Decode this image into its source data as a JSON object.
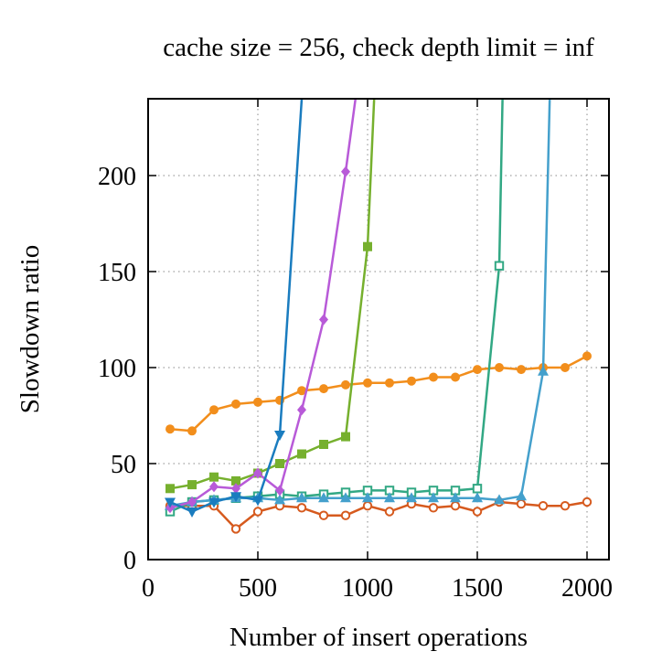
{
  "chart_data": {
    "type": "line",
    "title": "cache size = 256, check depth limit = inf",
    "xlabel": "Number of insert operations",
    "ylabel": "Slowdown ratio",
    "xlim": [
      0,
      2100
    ],
    "ylim": [
      0,
      240
    ],
    "xticks": [
      0,
      500,
      1000,
      1500,
      2000
    ],
    "yticks": [
      0,
      50,
      100,
      150,
      200
    ],
    "grid": true,
    "series": [
      {
        "color": "#f28e1c",
        "marker": "circle-filled",
        "points": [
          [
            100,
            68
          ],
          [
            200,
            67
          ],
          [
            300,
            78
          ],
          [
            400,
            81
          ],
          [
            500,
            82
          ],
          [
            600,
            83
          ],
          [
            700,
            88
          ],
          [
            800,
            89
          ],
          [
            900,
            91
          ],
          [
            1000,
            92
          ],
          [
            1100,
            92
          ],
          [
            1200,
            93
          ],
          [
            1300,
            95
          ],
          [
            1400,
            95
          ],
          [
            1500,
            99
          ],
          [
            1600,
            100
          ],
          [
            1700,
            99
          ],
          [
            1800,
            100
          ],
          [
            1900,
            100
          ],
          [
            2000,
            106
          ]
        ]
      },
      {
        "color": "#d65a1e",
        "marker": "circle-open",
        "points": [
          [
            100,
            28
          ],
          [
            200,
            28
          ],
          [
            300,
            28
          ],
          [
            400,
            16
          ],
          [
            500,
            25
          ],
          [
            600,
            28
          ],
          [
            700,
            27
          ],
          [
            800,
            23
          ],
          [
            900,
            23
          ],
          [
            1000,
            28
          ],
          [
            1100,
            25
          ],
          [
            1200,
            29
          ],
          [
            1300,
            27
          ],
          [
            1400,
            28
          ],
          [
            1500,
            25
          ],
          [
            1600,
            30
          ],
          [
            1700,
            29
          ],
          [
            1800,
            28
          ],
          [
            1900,
            28
          ],
          [
            2000,
            30
          ]
        ]
      },
      {
        "color": "#32a884",
        "marker": "square-open",
        "points": [
          [
            100,
            25
          ],
          [
            200,
            30
          ],
          [
            300,
            31
          ],
          [
            400,
            32
          ],
          [
            500,
            33
          ],
          [
            600,
            34
          ],
          [
            700,
            33
          ],
          [
            800,
            34
          ],
          [
            900,
            35
          ],
          [
            1000,
            36
          ],
          [
            1100,
            36
          ],
          [
            1200,
            35
          ],
          [
            1300,
            36
          ],
          [
            1400,
            36
          ],
          [
            1500,
            37
          ],
          [
            1600,
            153
          ],
          [
            1615,
            240
          ]
        ]
      },
      {
        "color": "#44a0cc",
        "marker": "triangle-up",
        "points": [
          [
            100,
            28
          ],
          [
            200,
            30
          ],
          [
            300,
            31
          ],
          [
            400,
            32
          ],
          [
            500,
            32
          ],
          [
            600,
            31
          ],
          [
            700,
            32
          ],
          [
            800,
            32
          ],
          [
            900,
            32
          ],
          [
            1000,
            32
          ],
          [
            1100,
            32
          ],
          [
            1200,
            32
          ],
          [
            1300,
            32
          ],
          [
            1400,
            32
          ],
          [
            1500,
            32
          ],
          [
            1600,
            31
          ],
          [
            1700,
            33
          ],
          [
            1800,
            98
          ],
          [
            1830,
            240
          ]
        ]
      },
      {
        "color": "#76b02e",
        "marker": "square-filled",
        "points": [
          [
            100,
            37
          ],
          [
            200,
            39
          ],
          [
            300,
            43
          ],
          [
            400,
            41
          ],
          [
            500,
            45
          ],
          [
            600,
            50
          ],
          [
            700,
            55
          ],
          [
            800,
            60
          ],
          [
            900,
            64
          ],
          [
            1000,
            163
          ],
          [
            1030,
            240
          ]
        ]
      },
      {
        "color": "#b85ad8",
        "marker": "diamond",
        "points": [
          [
            100,
            27
          ],
          [
            200,
            30
          ],
          [
            300,
            38
          ],
          [
            400,
            37
          ],
          [
            500,
            45
          ],
          [
            600,
            36
          ],
          [
            700,
            78
          ],
          [
            800,
            125
          ],
          [
            900,
            202
          ],
          [
            945,
            240
          ]
        ]
      },
      {
        "color": "#1a7cbf",
        "marker": "triangle-down",
        "points": [
          [
            100,
            30
          ],
          [
            200,
            25
          ],
          [
            300,
            30
          ],
          [
            400,
            33
          ],
          [
            500,
            31
          ],
          [
            600,
            65
          ],
          [
            700,
            240
          ]
        ]
      }
    ]
  }
}
